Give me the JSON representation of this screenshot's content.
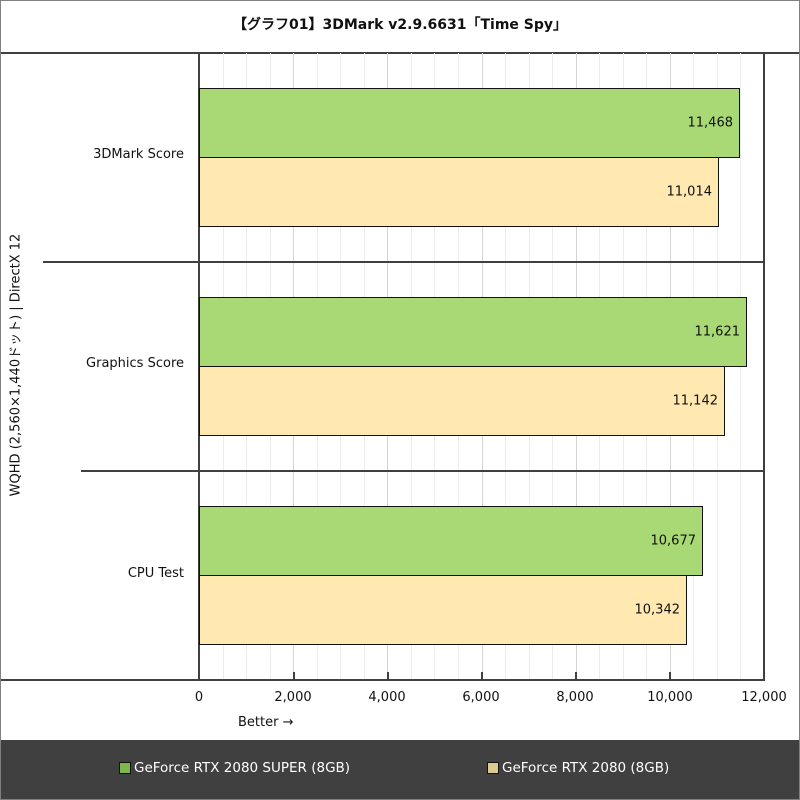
{
  "title": "【グラフ01】3DMark v2.9.6631「Time Spy」",
  "y_axis_label": "WQHD (2,560×1,440ドット) | DirectX 12",
  "x_axis_note": "Better →",
  "x_ticks": [
    "0",
    "2,000",
    "4,000",
    "6,000",
    "8,000",
    "10,000",
    "12,000"
  ],
  "categories": [
    "3DMark Score",
    "Graphics Score",
    "CPU Test"
  ],
  "bars": [
    {
      "label": "11,468"
    },
    {
      "label": "11,014"
    },
    {
      "label": "11,621"
    },
    {
      "label": "11,142"
    },
    {
      "label": "10,677"
    },
    {
      "label": "10,342"
    }
  ],
  "legend": [
    {
      "label": "GeForce RTX 2080 SUPER (8GB)",
      "color": "#a9d974"
    },
    {
      "label": "GeForce RTX 2080 (8GB)",
      "color": "#ffe9b0"
    }
  ],
  "chart_data": {
    "type": "bar",
    "orientation": "horizontal",
    "title": "【グラフ01】3DMark v2.9.6631「Time Spy」",
    "xlabel": "Better →",
    "ylabel": "WQHD (2,560×1,440ドット) | DirectX 12",
    "categories": [
      "3DMark Score",
      "Graphics Score",
      "CPU Test"
    ],
    "series": [
      {
        "name": "GeForce RTX 2080 SUPER (8GB)",
        "color": "#a9d974",
        "values": [
          11468,
          11621,
          10677
        ]
      },
      {
        "name": "GeForce RTX 2080 (8GB)",
        "color": "#ffe9b0",
        "values": [
          11014,
          11142,
          10342
        ]
      }
    ],
    "xlim": [
      0,
      12000
    ],
    "x_ticks": [
      0,
      2000,
      4000,
      6000,
      8000,
      10000,
      12000
    ],
    "grid": true,
    "legend_position": "bottom"
  }
}
